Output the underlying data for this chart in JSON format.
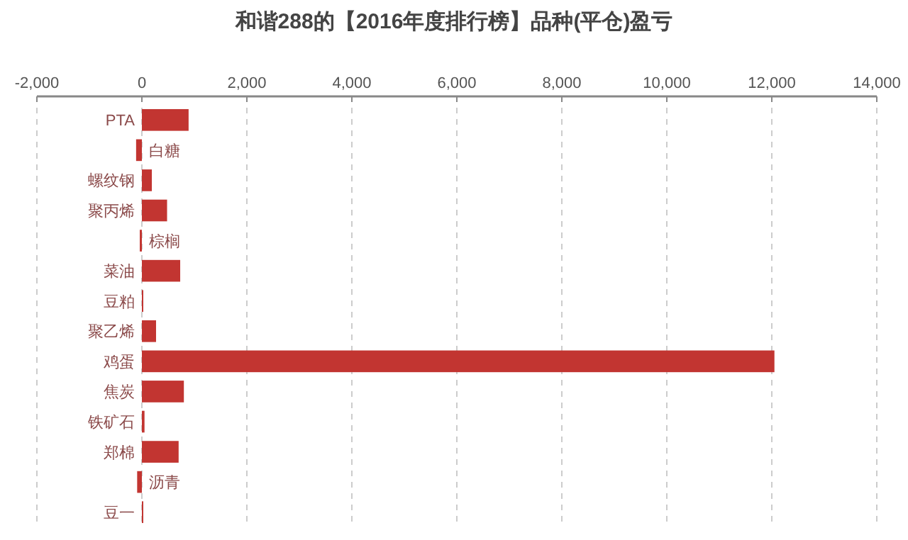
{
  "chart_data": {
    "type": "bar",
    "orientation": "horizontal",
    "title": "和谐288的【2016年度排行榜】品种(平仓)盈亏",
    "categories": [
      "PTA",
      "白糖",
      "螺纹钢",
      "聚丙烯",
      "棕榈",
      "菜油",
      "豆粕",
      "聚乙烯",
      "鸡蛋",
      "焦炭",
      "铁矿石",
      "郑棉",
      "沥青",
      "豆一"
    ],
    "values": [
      890,
      -110,
      190,
      480,
      -40,
      730,
      20,
      270,
      12050,
      800,
      50,
      700,
      -90,
      10
    ],
    "color": "#c23531",
    "xlim": [
      -2000,
      14000
    ],
    "xticks": [
      {
        "value": -2000,
        "label": "-2,000"
      },
      0,
      {
        "value": 2000,
        "label": "2,000"
      },
      {
        "value": 4000,
        "label": "4,000"
      },
      {
        "value": 6000,
        "label": "6,000"
      },
      {
        "value": 8000,
        "label": "8,000"
      },
      {
        "value": 10000,
        "label": "10,000"
      },
      {
        "value": 12000,
        "label": "12,000"
      },
      {
        "value": 14000,
        "label": "14,000"
      }
    ],
    "grid": "x"
  }
}
